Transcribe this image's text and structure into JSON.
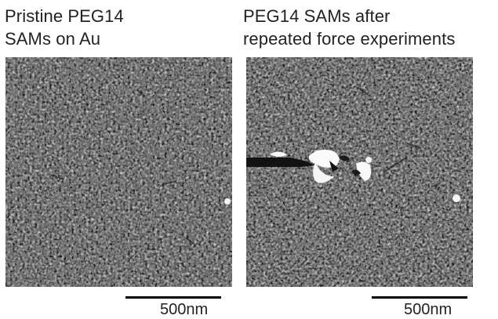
{
  "panels": [
    {
      "title_line1": "Pristine PEG14",
      "title_line2": "SAMs on Au",
      "scale_bar_label": "500nm"
    },
    {
      "title_line1": "PEG14 SAMs after",
      "title_line2": "repeated force experiments",
      "scale_bar_label": "500nm"
    }
  ],
  "colors": {
    "background": "#ffffff",
    "text": "#222222",
    "scale_bar": "#000000"
  }
}
